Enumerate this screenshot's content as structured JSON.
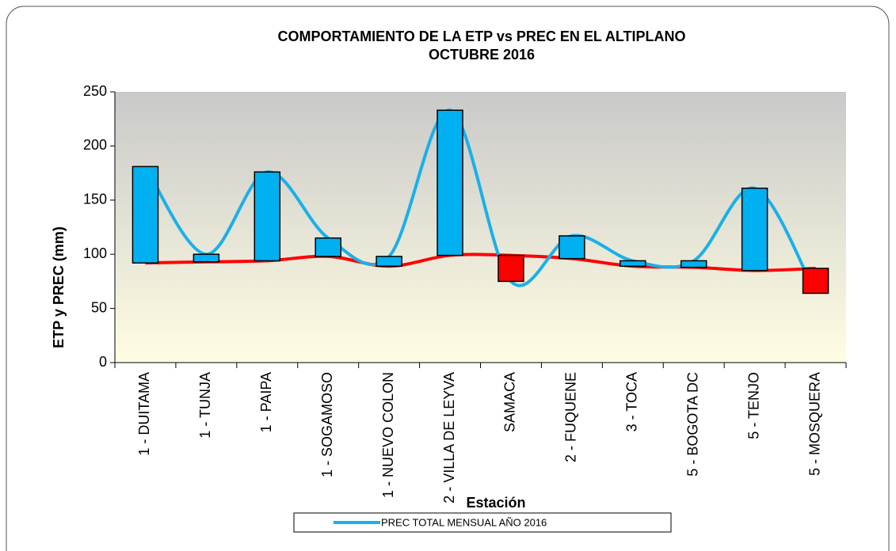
{
  "chart_data": {
    "type": "line",
    "title": [
      "COMPORTAMIENTO DE LA ETP vs PREC EN EL ALTIPLANO",
      "OCTUBRE  2016"
    ],
    "xlabel": "Estación",
    "ylabel": "ETP y PREC (mm)",
    "categories": [
      "1 - DUITAMA",
      "1 - TUNJA",
      "1 - PAIPA",
      "1 - SOGAMOSO",
      "1 - NUEVO COLON",
      "2 - VILLA DE LEYVA",
      "SAMACA",
      "2 - FUQUENE",
      "3 - TOCA",
      "5 - BOGOTA DC",
      "5 - TENJO",
      "5 - MOSQUERA"
    ],
    "series": [
      {
        "name": "PREC TOTAL MENSUAL  AÑO 2016",
        "color": "#1ab0e8",
        "values": [
          181,
          100,
          176,
          115,
          98,
          233,
          75,
          117,
          94,
          94,
          161,
          64
        ]
      },
      {
        "color": "#ff0000",
        "values": [
          92,
          93,
          94,
          98,
          89,
          99,
          99,
          96,
          89,
          88,
          85,
          87
        ]
      }
    ],
    "smooth": true,
    "updown_bars": {
      "up_color": "#00b0f0",
      "down_color": "#ff0000"
    },
    "ylim": [
      0,
      250
    ],
    "yticks": [
      0,
      50,
      100,
      150,
      200,
      250
    ]
  }
}
